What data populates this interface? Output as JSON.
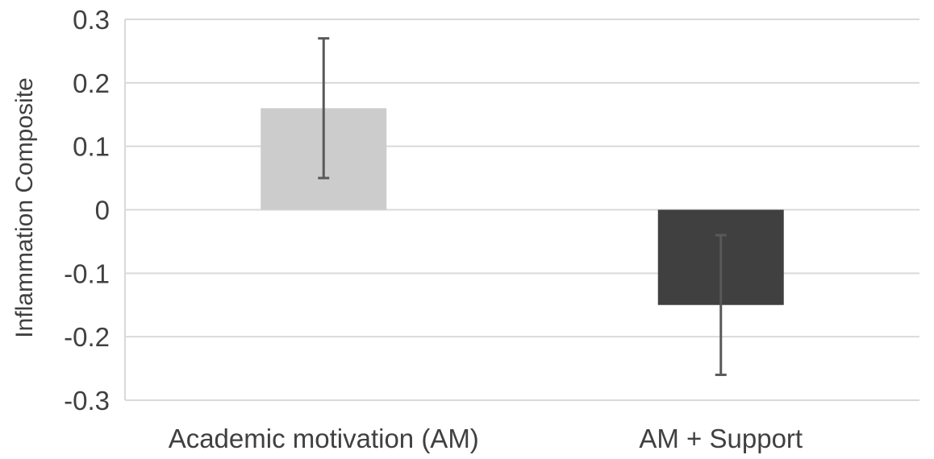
{
  "chart_data": {
    "type": "bar",
    "categories": [
      "Academic motivation (AM)",
      "AM + Support"
    ],
    "values": [
      0.16,
      -0.15
    ],
    "error_upper": [
      0.27,
      -0.04
    ],
    "error_lower": [
      0.05,
      -0.26
    ],
    "colors": [
      "#cccccc",
      "#404040"
    ],
    "title": "",
    "xlabel": "",
    "ylabel": "Inflammation Composite",
    "ylim": [
      -0.3,
      0.3
    ],
    "yticks": [
      0.3,
      0.2,
      0.1,
      0,
      -0.1,
      -0.2,
      -0.3
    ],
    "ytick_labels": [
      "0.3",
      "0.2",
      "0.1",
      "0",
      "-0.1",
      "-0.2",
      "-0.3"
    ],
    "grid": true,
    "legend": "none"
  }
}
